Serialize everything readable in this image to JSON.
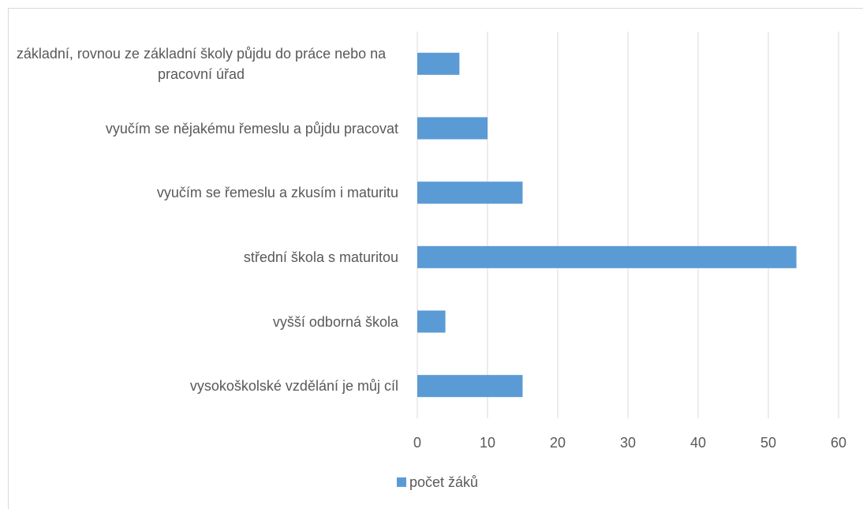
{
  "chart_data": {
    "type": "barh",
    "categories": [
      "základní, rovnou ze základní školy půjdu do práce nebo na pracovní úřad",
      "vyučím se nějakému řemeslu a půjdu pracovat",
      "vyučím se řemeslu a zkusím i maturitu",
      "střední škola s maturitou",
      "vyšší odborná škola",
      "vysokoškolské vzdělání je můj cíl"
    ],
    "series": [
      {
        "name": "počet žáků",
        "color": "#5b9bd5",
        "values": [
          6,
          10,
          15,
          54,
          4,
          15
        ]
      }
    ],
    "xlim": [
      0,
      60
    ],
    "xticks": [
      0,
      10,
      20,
      30,
      40,
      50,
      60
    ],
    "grid": true,
    "legend": "bottom"
  }
}
